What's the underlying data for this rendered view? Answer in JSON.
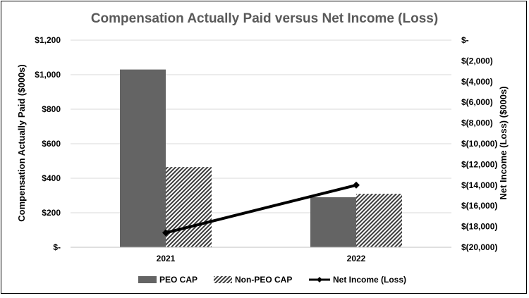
{
  "chart_data": {
    "type": "bar",
    "title": "Compensation Actually Paid versus Net Income (Loss)",
    "categories": [
      "2021",
      "2022"
    ],
    "series": [
      {
        "name": "PEO CAP",
        "type": "bar",
        "axis": "left",
        "values": [
          1030,
          290
        ],
        "color": "#646464",
        "pattern": "solid"
      },
      {
        "name": "Non-PEO CAP",
        "type": "bar",
        "axis": "left",
        "values": [
          465,
          310
        ],
        "color": "#3a3a3a",
        "pattern": "diagonal-hatch"
      },
      {
        "name": "Net Income (Loss)",
        "type": "line",
        "axis": "right",
        "values": [
          -18600,
          -14000
        ],
        "color": "#000000",
        "marker": "diamond"
      }
    ],
    "y_left": {
      "label": "Compensation Actually Paid ($000s)",
      "min": 0,
      "max": 1200,
      "step": 200,
      "tick_labels": [
        "$-",
        "$200",
        "$400",
        "$600",
        "$800",
        "$1,000",
        "$1,200"
      ]
    },
    "y_right": {
      "label": "Net Income (Loss) ($000s)",
      "min": -20000,
      "max": 0,
      "step": 2000,
      "tick_labels": [
        "$(20,000)",
        "$(18,000)",
        "$(16,000)",
        "$(14,000)",
        "$(12,000)",
        "$(10,000)",
        "$(8,000)",
        "$(6,000)",
        "$(4,000)",
        "$(2,000)",
        "$-"
      ]
    },
    "grid": true,
    "legend_position": "bottom"
  }
}
